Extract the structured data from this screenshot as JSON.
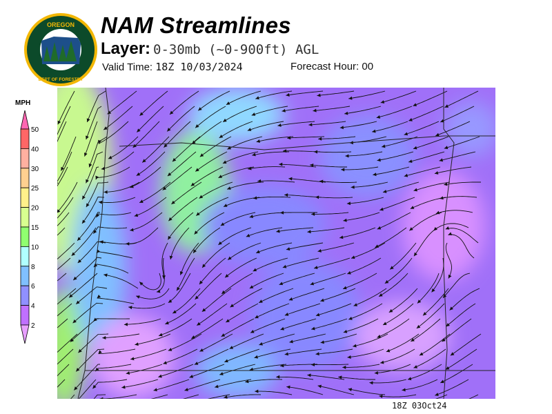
{
  "logo": {
    "text_top": "OREGON",
    "text_bottom": "DEPARTMENT OF FORESTRY",
    "colors": {
      "ring": "#f2b705",
      "field": "#0c4a2a"
    }
  },
  "header": {
    "title": "NAM Streamlines",
    "layer_label": "Layer:",
    "layer_value": "0-30mb (~0-900ft) AGL",
    "valid_label": "Valid Time:",
    "valid_value": "18Z 10/03/2024",
    "forecast_label": "Forecast Hour:",
    "forecast_value": "00"
  },
  "legend": {
    "unit": "MPH",
    "ticks": [
      "50",
      "40",
      "30",
      "25",
      "20",
      "15",
      "10",
      "8",
      "6",
      "4",
      "2"
    ],
    "colors": [
      "#ff66b2",
      "#ff6666",
      "#ffb0a0",
      "#ffd090",
      "#fff08a",
      "#d8ff90",
      "#90ff70",
      "#b0ffff",
      "#80c0ff",
      "#9090ff",
      "#c070ff",
      "#e8a0ff"
    ]
  },
  "map": {
    "region": "Oregon",
    "stamp": "18Z 03Oct24"
  }
}
